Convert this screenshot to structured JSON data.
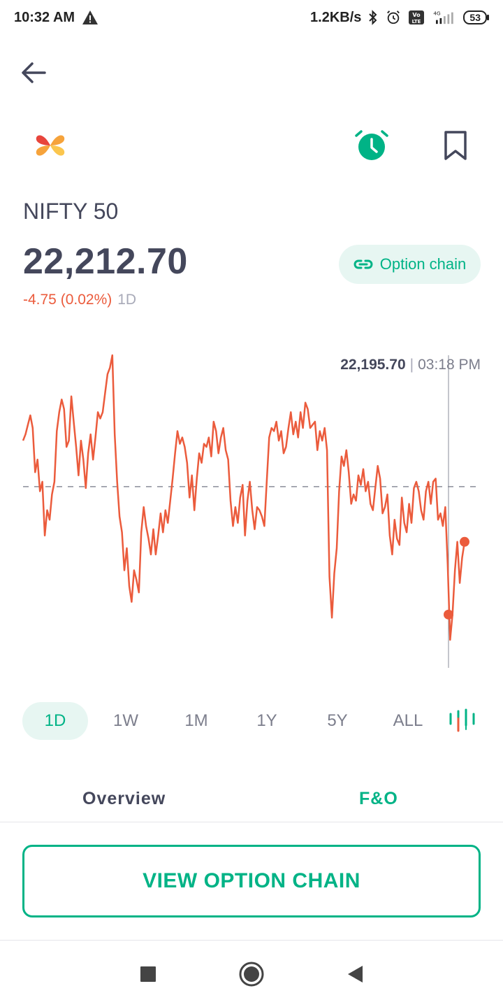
{
  "status_bar": {
    "time": "10:32 AM",
    "net_speed": "1.2KB/s",
    "network_label": "4G",
    "battery": "53",
    "icons": [
      "warning-icon",
      "bluetooth-icon",
      "alarm-icon",
      "volte-icon",
      "signal-icon",
      "battery-icon"
    ]
  },
  "header": {
    "back_icon": "back-arrow-icon",
    "logo_icon": "app-logo",
    "alarm_icon": "price-alert-icon",
    "bookmark_icon": "bookmark-icon"
  },
  "instrument": {
    "name": "NIFTY 50",
    "price": "22,212.70",
    "change": "-4.75 (0.02%)",
    "period": "1D"
  },
  "option_chip": {
    "label": "Option chain",
    "icon": "link-icon"
  },
  "chart_data": {
    "type": "line",
    "series": [
      {
        "values": [
          22232,
          22234,
          22237,
          22240,
          22236,
          22222,
          22226,
          22216,
          22219,
          22202,
          22210,
          22207,
          22215,
          22219,
          22235,
          22241,
          22245,
          22242,
          22230,
          22232,
          22246,
          22238,
          22230,
          22221,
          22232,
          22226,
          22217,
          22228,
          22234,
          22226,
          22233,
          22241,
          22239,
          22241,
          22247,
          22253,
          22255,
          22259,
          22234,
          22219,
          22208,
          22203,
          22191,
          22198,
          22186,
          22181,
          22191,
          22188,
          22184,
          22203,
          22211,
          22205,
          22201,
          22196,
          22204,
          22196,
          22202,
          22209,
          22203,
          22210,
          22206,
          22213,
          22220,
          22228,
          22235,
          22231,
          22233,
          22230,
          22225,
          22214,
          22221,
          22210,
          22220,
          22228,
          22225,
          22231,
          22230,
          22233,
          22227,
          22238,
          22235,
          22228,
          22233,
          22236,
          22229,
          22226,
          22213,
          22205,
          22211,
          22206,
          22214,
          22218,
          22202,
          22213,
          22219,
          22210,
          22204,
          22211,
          22210,
          22208,
          22205,
          22219,
          22233,
          22236,
          22235,
          22238,
          22232,
          22235,
          22228,
          22230,
          22236,
          22241,
          22234,
          22238,
          22233,
          22241,
          22236,
          22244,
          22242,
          22236,
          22237,
          22238,
          22229,
          22235,
          22232,
          22236,
          22229,
          22189,
          22176,
          22190,
          22198,
          22216,
          22227,
          22224,
          22229,
          22222,
          22212,
          22215,
          22213,
          22221,
          22218,
          22223,
          22216,
          22219,
          22212,
          22210,
          22217,
          22224,
          22220,
          22209,
          22211,
          22215,
          22202,
          22196,
          22207,
          22201,
          22199,
          22214,
          22206,
          22203,
          22212,
          22206,
          22217,
          22219,
          22216,
          22210,
          22207,
          22216,
          22219,
          22212,
          22219,
          22220,
          22207,
          22209,
          22205,
          22211,
          22193,
          22169,
          22177,
          22191,
          22200,
          22187,
          22195,
          22200
        ]
      }
    ],
    "reference_line": 22217.45,
    "selected_point": {
      "value": "22,195.70",
      "time": "03:18 PM"
    },
    "line_color": "#eb5b3c",
    "reference_color": "#8a8c99",
    "grid": false,
    "legend": "none"
  },
  "ranges": {
    "items": [
      "1D",
      "1W",
      "1M",
      "1Y",
      "5Y",
      "ALL"
    ],
    "active": "1D",
    "chart_type_icon": "candlestick-icon"
  },
  "tabs": {
    "overview": "Overview",
    "fo": "F&O",
    "active": "F&O"
  },
  "cta": {
    "label": "VIEW OPTION CHAIN"
  },
  "nav": {
    "icons": [
      "recents-square-icon",
      "home-circle-icon",
      "back-triangle-icon"
    ]
  },
  "colors": {
    "accent": "#00b386",
    "accent_bg": "#e7f6f2",
    "negative": "#eb5b3c",
    "text_primary": "#44475b",
    "text_muted": "#7c7e8c"
  }
}
